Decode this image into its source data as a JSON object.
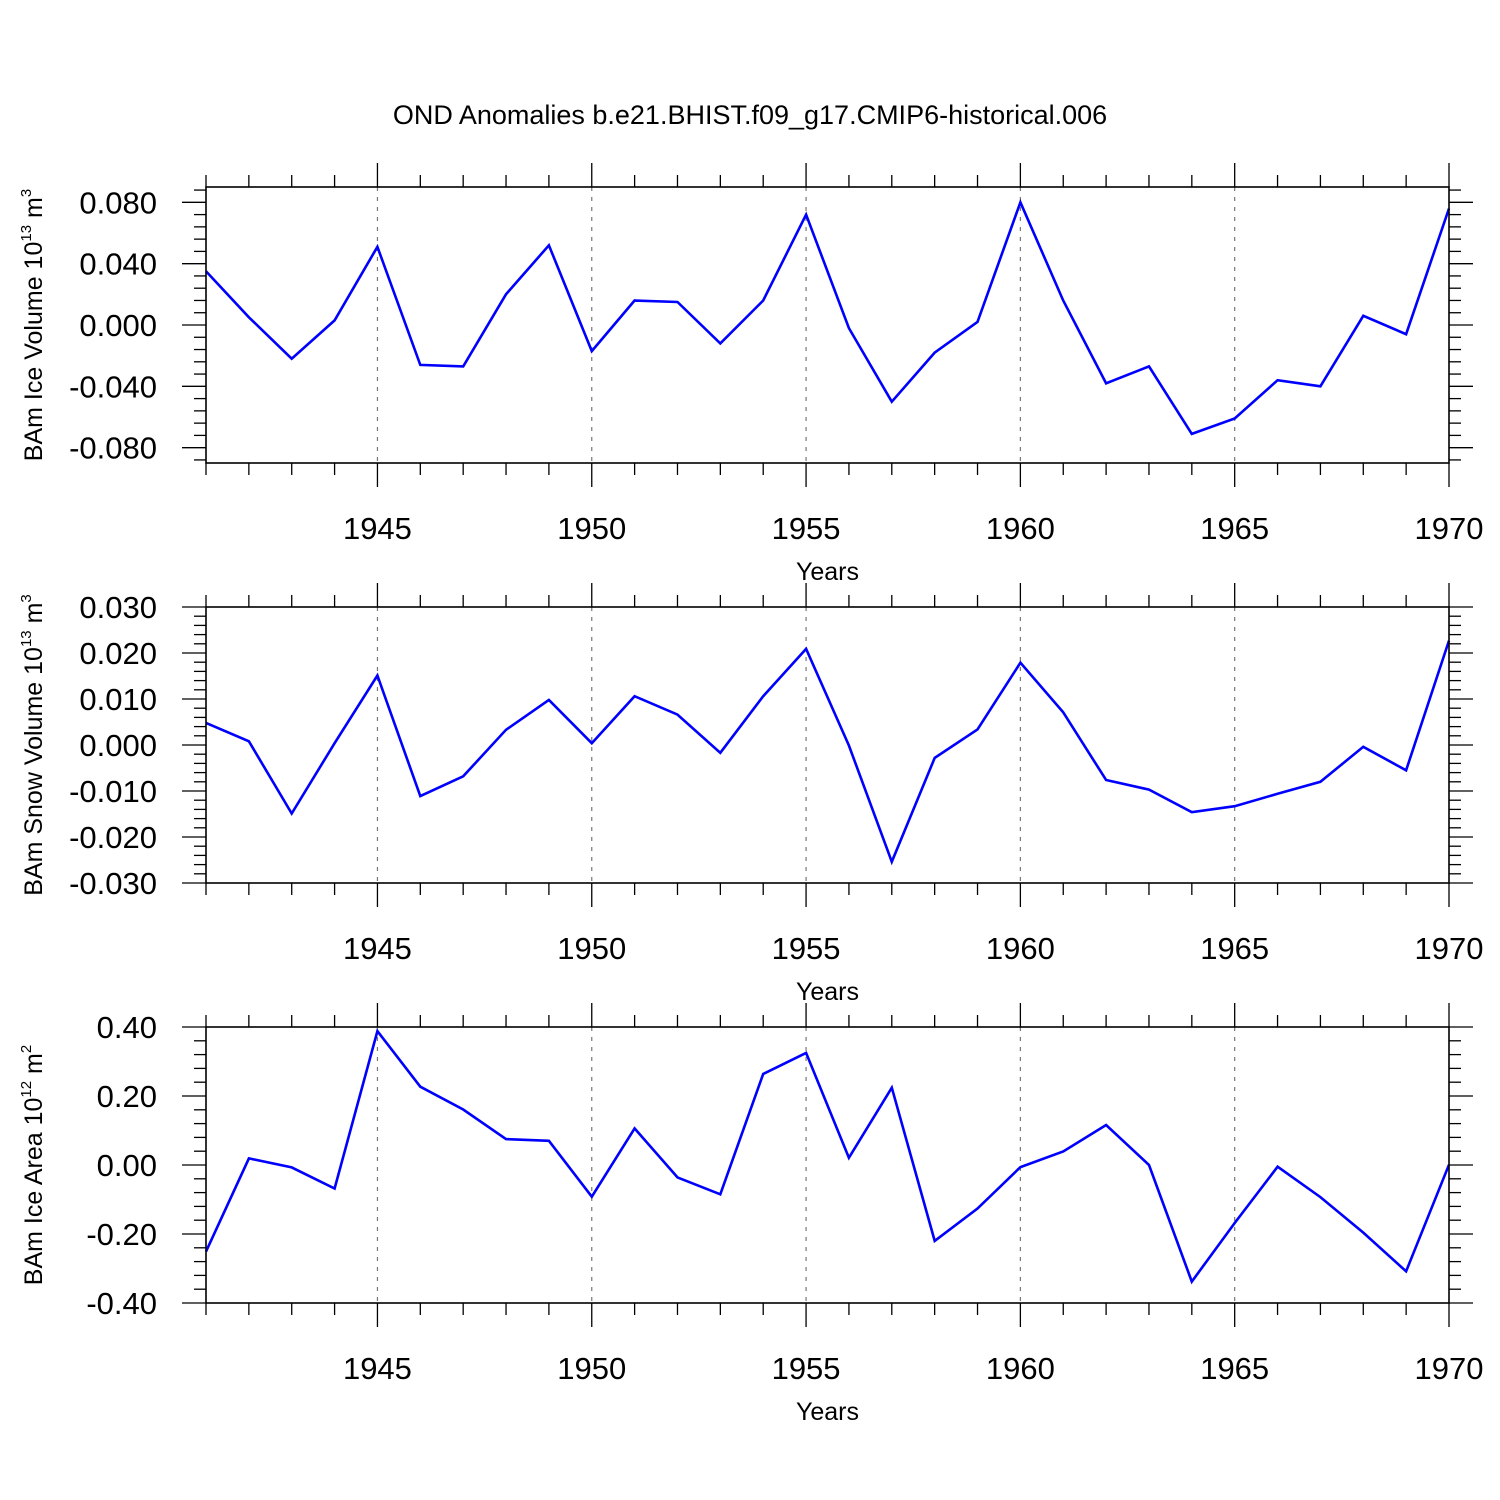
{
  "title": "OND Anomalies b.e21.BHIST.f09_g17.CMIP6-historical.006",
  "colors": {
    "line": "#0000ff",
    "axis": "#000000",
    "grid": "#777777"
  },
  "chart_data": [
    {
      "type": "line",
      "title": "",
      "xlabel": "Years",
      "ylabel": {
        "prefix": "BAm Ice Volume 10",
        "sup1": "13",
        "mid": " m",
        "sup2": "3"
      },
      "xlim": [
        1941,
        1970
      ],
      "ylim": [
        -0.09,
        0.09
      ],
      "x_ticks": [
        1945,
        1950,
        1955,
        1960,
        1965,
        1970
      ],
      "y_ticks": [
        -0.08,
        -0.04,
        0.0,
        0.04,
        0.08
      ],
      "y_tick_labels": [
        "-0.080",
        "-0.040",
        "0.000",
        "0.040",
        "0.080"
      ],
      "grid": "vertical dashed at major x ticks",
      "series": [
        {
          "x": [
            1941,
            1942,
            1943,
            1944,
            1945,
            1946,
            1947,
            1948,
            1949,
            1950,
            1951,
            1952,
            1953,
            1954,
            1955,
            1956,
            1957,
            1958,
            1959,
            1960,
            1961,
            1962,
            1963,
            1964,
            1965,
            1966,
            1967,
            1968,
            1969,
            1970
          ],
          "values": [
            0.035,
            0.005,
            -0.022,
            0.003,
            0.051,
            -0.026,
            -0.027,
            0.02,
            0.052,
            -0.017,
            0.016,
            0.015,
            -0.012,
            0.016,
            0.072,
            -0.002,
            -0.05,
            -0.018,
            0.002,
            0.08,
            0.016,
            -0.038,
            -0.027,
            -0.071,
            -0.061,
            -0.036,
            -0.04,
            0.006,
            -0.006,
            0.076
          ]
        }
      ]
    },
    {
      "type": "line",
      "title": "",
      "xlabel": "Years",
      "ylabel": {
        "prefix": "BAm Snow Volume 10",
        "sup1": "13",
        "mid": " m",
        "sup2": "3"
      },
      "xlim": [
        1941,
        1970
      ],
      "ylim": [
        -0.03,
        0.03
      ],
      "x_ticks": [
        1945,
        1950,
        1955,
        1960,
        1965,
        1970
      ],
      "y_ticks": [
        -0.03,
        -0.02,
        -0.01,
        0.0,
        0.01,
        0.02,
        0.03
      ],
      "y_tick_labels": [
        "-0.030",
        "-0.020",
        "-0.010",
        "0.000",
        "0.010",
        "0.020",
        "0.030"
      ],
      "grid": "vertical dashed at major x ticks",
      "series": [
        {
          "x": [
            1941,
            1942,
            1943,
            1944,
            1945,
            1946,
            1947,
            1948,
            1949,
            1950,
            1951,
            1952,
            1953,
            1954,
            1955,
            1956,
            1957,
            1958,
            1959,
            1960,
            1961,
            1962,
            1963,
            1964,
            1965,
            1966,
            1967,
            1968,
            1969,
            1970
          ],
          "values": [
            0.0048,
            0.0008,
            -0.0149,
            0.0004,
            0.0151,
            -0.0111,
            -0.0068,
            0.0033,
            0.0098,
            0.0004,
            0.0106,
            0.0066,
            -0.0017,
            0.0106,
            0.0209,
            -0.0001,
            -0.0254,
            -0.0028,
            0.0034,
            0.0179,
            0.0071,
            -0.0076,
            -0.0097,
            -0.0146,
            -0.0133,
            -0.0106,
            -0.008,
            -0.0004,
            -0.0055,
            0.0227
          ]
        }
      ]
    },
    {
      "type": "line",
      "title": "",
      "xlabel": "Years",
      "ylabel": {
        "prefix": "BAm Ice Area 10",
        "sup1": "12",
        "mid": " m",
        "sup2": "2"
      },
      "xlim": [
        1941,
        1970
      ],
      "ylim": [
        -0.4,
        0.4
      ],
      "x_ticks": [
        1945,
        1950,
        1955,
        1960,
        1965,
        1970
      ],
      "y_ticks": [
        -0.4,
        -0.2,
        0.0,
        0.2,
        0.4
      ],
      "y_tick_labels": [
        "-0.40",
        "-0.20",
        "0.00",
        "0.20",
        "0.40"
      ],
      "grid": "vertical dashed at major x ticks",
      "series": [
        {
          "x": [
            1941,
            1942,
            1943,
            1944,
            1945,
            1946,
            1947,
            1948,
            1949,
            1950,
            1951,
            1952,
            1953,
            1954,
            1955,
            1956,
            1957,
            1958,
            1959,
            1960,
            1961,
            1962,
            1963,
            1964,
            1965,
            1966,
            1967,
            1968,
            1969,
            1970
          ],
          "values": [
            -0.251,
            0.019,
            -0.007,
            -0.068,
            0.388,
            0.227,
            0.161,
            0.075,
            0.07,
            -0.092,
            0.106,
            -0.036,
            -0.085,
            0.264,
            0.325,
            0.021,
            0.224,
            -0.22,
            -0.126,
            -0.006,
            0.039,
            0.116,
            0.0,
            -0.338,
            -0.168,
            -0.005,
            -0.093,
            -0.196,
            -0.308,
            0.001
          ]
        }
      ]
    }
  ]
}
